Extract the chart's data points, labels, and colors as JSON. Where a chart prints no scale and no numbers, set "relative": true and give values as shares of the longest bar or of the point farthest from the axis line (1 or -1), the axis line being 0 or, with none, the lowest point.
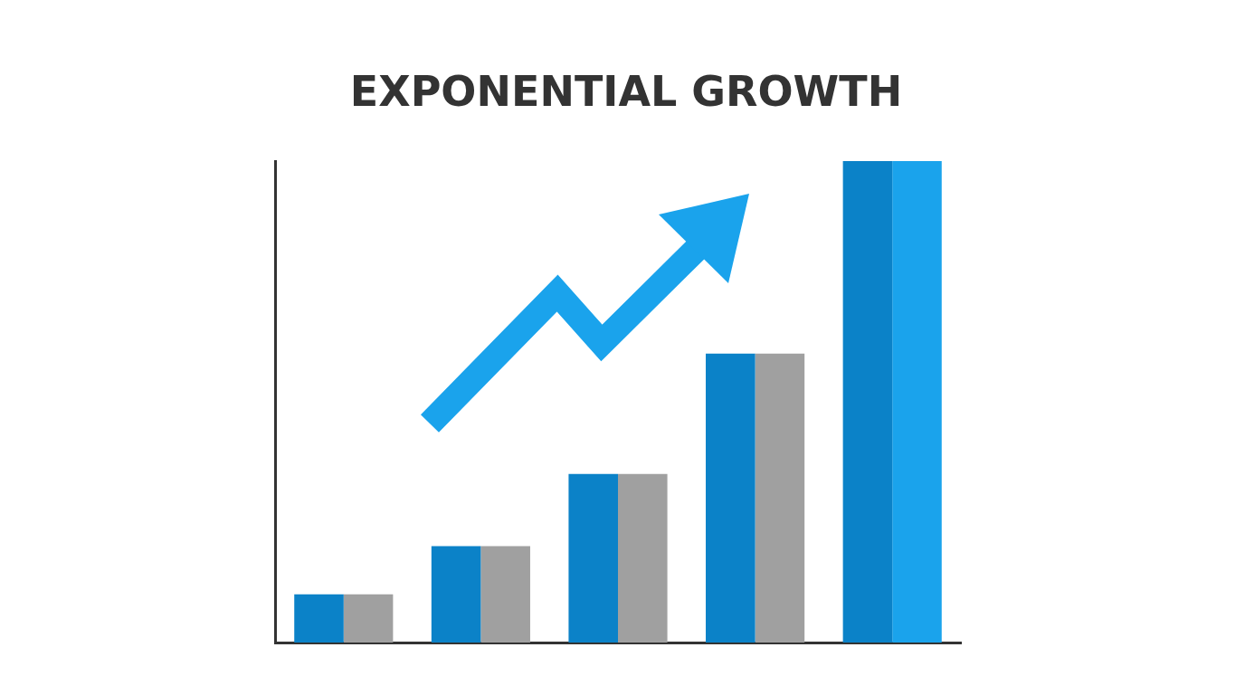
{
  "chart_data": {
    "type": "bar",
    "title": "EXPONENTIAL GROWTH",
    "relative": true,
    "categories": [
      null,
      null,
      null,
      null,
      null
    ],
    "series": [
      {
        "colors": [
          "#0b82c8",
          "#0b82c8",
          "#0b82c8",
          "#0b82c8",
          "#0b82c8"
        ],
        "values": [
          0.1,
          0.2,
          0.35,
          0.6,
          1
        ]
      },
      {
        "colors": [
          "#a0a0a0",
          "#a0a0a0",
          "#a0a0a0",
          "#a0a0a0",
          "#1aa3ec"
        ],
        "values": [
          0.1,
          0.2,
          0.35,
          0.6,
          1
        ]
      }
    ],
    "grid": false,
    "legend": false
  }
}
